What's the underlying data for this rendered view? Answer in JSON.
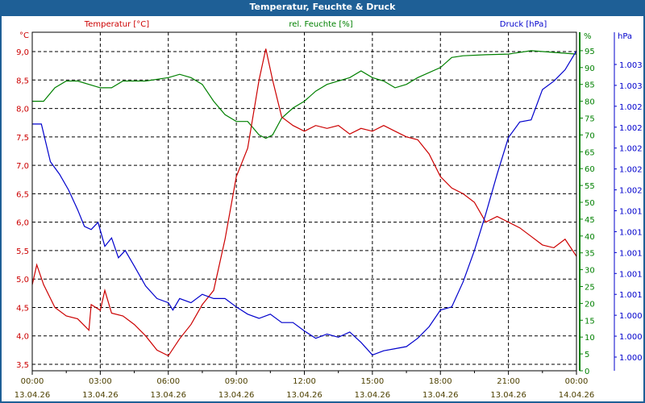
{
  "window": {
    "title": "Temperatur, Feuchte & Druck"
  },
  "legend": {
    "temperature": "Temperatur [°C]",
    "humidity": "rel. Feuchte [%]",
    "pressure": "Druck [hPa]"
  },
  "colors": {
    "temperature": "#cc0000",
    "humidity": "#008000",
    "pressure": "#0000cc",
    "time": "#4d4000",
    "titlebar": "#1e5f96"
  },
  "chart_data": {
    "type": "line",
    "title": "Temperatur, Feuchte & Druck",
    "xlabel": "",
    "x_range_hours": [
      0,
      24
    ],
    "x_ticks": [
      {
        "time": "00:00",
        "date": "13.04.26"
      },
      {
        "time": "03:00",
        "date": "13.04.26"
      },
      {
        "time": "06:00",
        "date": "13.04.26"
      },
      {
        "time": "09:00",
        "date": "13.04.26"
      },
      {
        "time": "12:00",
        "date": "13.04.26"
      },
      {
        "time": "15:00",
        "date": "13.04.26"
      },
      {
        "time": "18:00",
        "date": "13.04.26"
      },
      {
        "time": "21:00",
        "date": "13.04.26"
      },
      {
        "time": "00:00",
        "date": "14.04.26"
      }
    ],
    "axes": {
      "temperature": {
        "unit": "°C",
        "ylim": [
          3.5,
          9.0
        ],
        "ticks": [
          "9,0",
          "8,5",
          "8,0",
          "7,5",
          "7,0",
          "6,5",
          "6,0",
          "5,5",
          "5,0",
          "4,5",
          "4,0",
          "3,5"
        ]
      },
      "humidity": {
        "unit": "%",
        "ylim": [
          0,
          95
        ],
        "ticks": [
          "95",
          "90",
          "85",
          "80",
          "75",
          "70",
          "65",
          "60",
          "55",
          "50",
          "45",
          "40",
          "35",
          "30",
          "25",
          "20",
          "15",
          "10",
          "5",
          "0"
        ]
      },
      "pressure": {
        "unit": "hPa",
        "tick_values": [
          1.0028,
          1.0026,
          1.0024,
          1.0022,
          1.002,
          1.0018,
          1.0016,
          1.0014,
          1.0012,
          1.001,
          1.0008,
          1.0006,
          1.0004,
          1.0002,
          1.0
        ],
        "ticks": [
          "1.003",
          "1.003",
          "1.002",
          "1.002",
          "1.002",
          "1.002",
          "1.002",
          "1.001",
          "1.001",
          "1.001",
          "1.001",
          "1.001",
          "1.000",
          "1.000",
          "1.000"
        ]
      }
    },
    "series": [
      {
        "name": "Temperatur [°C]",
        "axis": "temperature",
        "x": [
          0,
          0.2,
          0.5,
          1,
          1.5,
          2,
          2.5,
          2.6,
          3,
          3.2,
          3.5,
          4,
          4.5,
          5,
          5.5,
          6,
          6.5,
          7,
          7.5,
          8,
          8.5,
          9,
          9.5,
          10,
          10.3,
          10.6,
          11,
          11.5,
          12,
          12.5,
          13,
          13.5,
          14,
          14.5,
          15,
          15.5,
          16,
          16.5,
          17,
          17.5,
          18,
          18.5,
          19,
          19.5,
          20,
          20.5,
          21,
          21.5,
          22,
          22.5,
          23,
          23.5,
          24
        ],
        "y": [
          4.9,
          5.25,
          4.9,
          4.5,
          4.35,
          4.3,
          4.1,
          4.55,
          4.45,
          4.8,
          4.4,
          4.35,
          4.2,
          4.0,
          3.75,
          3.65,
          3.95,
          4.2,
          4.55,
          4.8,
          5.7,
          6.8,
          7.3,
          8.5,
          9.05,
          8.5,
          7.85,
          7.7,
          7.6,
          7.7,
          7.65,
          7.7,
          7.55,
          7.65,
          7.6,
          7.7,
          7.6,
          7.5,
          7.45,
          7.2,
          6.8,
          6.6,
          6.5,
          6.35,
          6.0,
          6.1,
          6.0,
          5.9,
          5.75,
          5.6,
          5.55,
          5.7,
          5.4
        ]
      },
      {
        "name": "rel. Feuchte [%]",
        "axis": "humidity",
        "x": [
          0,
          0.5,
          1,
          1.5,
          2,
          3,
          3.5,
          4,
          5,
          6,
          6.5,
          7,
          7.5,
          8,
          8.5,
          9,
          9.5,
          10,
          10.3,
          10.6,
          11,
          11.5,
          12,
          12.5,
          13,
          14,
          14.5,
          15,
          15.5,
          16,
          16.5,
          17,
          18,
          18.5,
          19,
          20,
          21,
          22,
          23,
          24
        ],
        "y": [
          80,
          80,
          84,
          86,
          86,
          84,
          84,
          86,
          86,
          87,
          88,
          87,
          85,
          80,
          76,
          74,
          74,
          70,
          69,
          70,
          75,
          78,
          80,
          83,
          85,
          87,
          89,
          87,
          86,
          84,
          85,
          87,
          90,
          93,
          93.5,
          93.8,
          94,
          95,
          94.5,
          94
        ]
      },
      {
        "name": "Druck [hPa]",
        "axis": "pressure",
        "x": [
          0,
          0.4,
          0.8,
          1.2,
          1.6,
          2,
          2.3,
          2.6,
          2.9,
          3.2,
          3.5,
          3.8,
          4.1,
          4.5,
          5,
          5.5,
          6,
          6.2,
          6.5,
          7,
          7.5,
          8,
          8.5,
          9,
          9.5,
          10,
          10.5,
          11,
          11.5,
          12,
          12.5,
          13,
          13.5,
          14,
          14.5,
          15,
          15.5,
          16,
          16.5,
          17,
          17.5,
          18,
          18.5,
          19,
          19.5,
          20,
          20.5,
          21,
          21.5,
          22,
          22.5,
          23,
          23.5,
          24
        ],
        "y": [
          1.00223,
          1.00223,
          1.00187,
          1.00175,
          1.0016,
          1.00141,
          1.00125,
          1.00122,
          1.00129,
          1.00106,
          1.00114,
          1.00095,
          1.00102,
          1.00087,
          1.00068,
          1.00056,
          1.00052,
          1.00045,
          1.00056,
          1.00052,
          1.0006,
          1.00056,
          1.00056,
          1.00048,
          1.00041,
          1.00037,
          1.00041,
          1.00033,
          1.00033,
          1.00025,
          1.00018,
          1.00022,
          1.00019,
          1.00024,
          1.00014,
          1.00002,
          1.00006,
          1.00008,
          1.0001,
          1.00018,
          1.00029,
          1.00045,
          1.00048,
          1.00072,
          1.00102,
          1.00137,
          1.00175,
          1.0021,
          1.00225,
          1.00227,
          1.00256,
          1.00264,
          1.00275,
          1.00293
        ]
      }
    ]
  }
}
